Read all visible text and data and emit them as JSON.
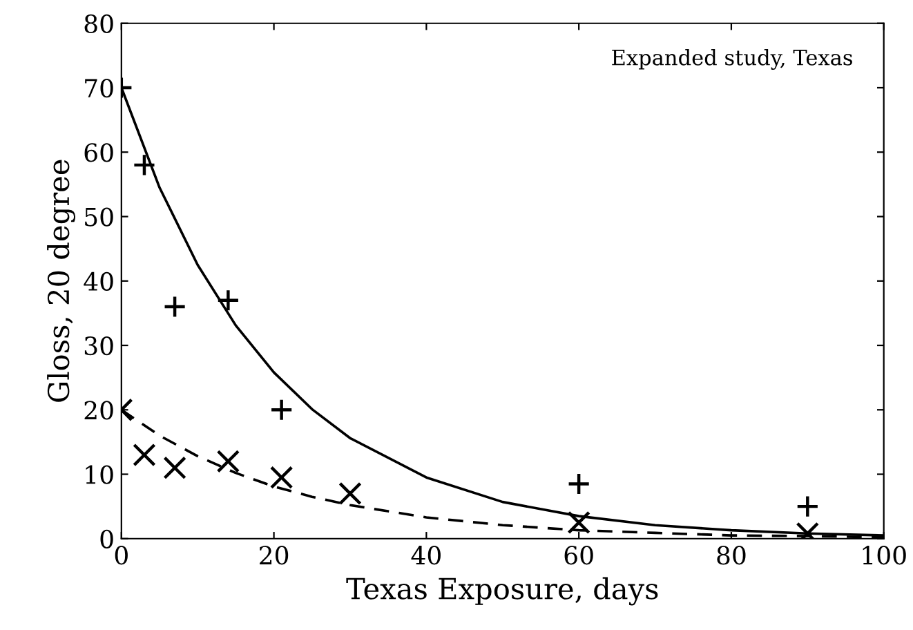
{
  "chart_data": {
    "type": "scatter",
    "xlabel": "Texas Exposure, days",
    "ylabel": "Gloss, 20 degree",
    "annotations": [
      "Expanded study, Texas"
    ],
    "xlim": [
      0,
      100
    ],
    "ylim": [
      0,
      80
    ],
    "xticks": [
      0,
      20,
      40,
      60,
      80,
      {
        "value": 100,
        "label": "100"
      }
    ],
    "yticks": [
      0,
      10,
      20,
      30,
      40,
      50,
      60,
      70,
      80
    ],
    "grid": false,
    "legend": false,
    "series": [
      {
        "marker": "plus",
        "color": "#000000",
        "x": [
          0,
          3,
          7,
          14,
          21,
          60,
          90
        ],
        "values": [
          70,
          58,
          36,
          37,
          20,
          8.5,
          5
        ]
      },
      {
        "marker": "cross",
        "color": "#000000",
        "x": [
          0,
          3,
          7,
          14,
          21,
          30,
          60,
          90
        ],
        "values": [
          20,
          13,
          11,
          12,
          9.5,
          7,
          2.5,
          0.8
        ]
      },
      {
        "type": "line",
        "line_style": "solid",
        "color": "#000000",
        "x": [
          0,
          5,
          10,
          15,
          20,
          25,
          30,
          40,
          50,
          60,
          70,
          80,
          90,
          100
        ],
        "values": [
          70,
          54.5,
          42.5,
          33.1,
          25.8,
          20.1,
          15.6,
          9.5,
          5.7,
          3.5,
          2.1,
          1.3,
          0.8,
          0.5
        ]
      },
      {
        "type": "line",
        "line_style": "dashed",
        "color": "#000000",
        "x": [
          0,
          5,
          10,
          15,
          20,
          25,
          30,
          40,
          50,
          60,
          70,
          80,
          90,
          100
        ],
        "values": [
          20,
          16,
          12.8,
          10.2,
          8.1,
          6.5,
          5.2,
          3.3,
          2.1,
          1.3,
          0.9,
          0.5,
          0.4,
          0.2
        ]
      }
    ]
  }
}
